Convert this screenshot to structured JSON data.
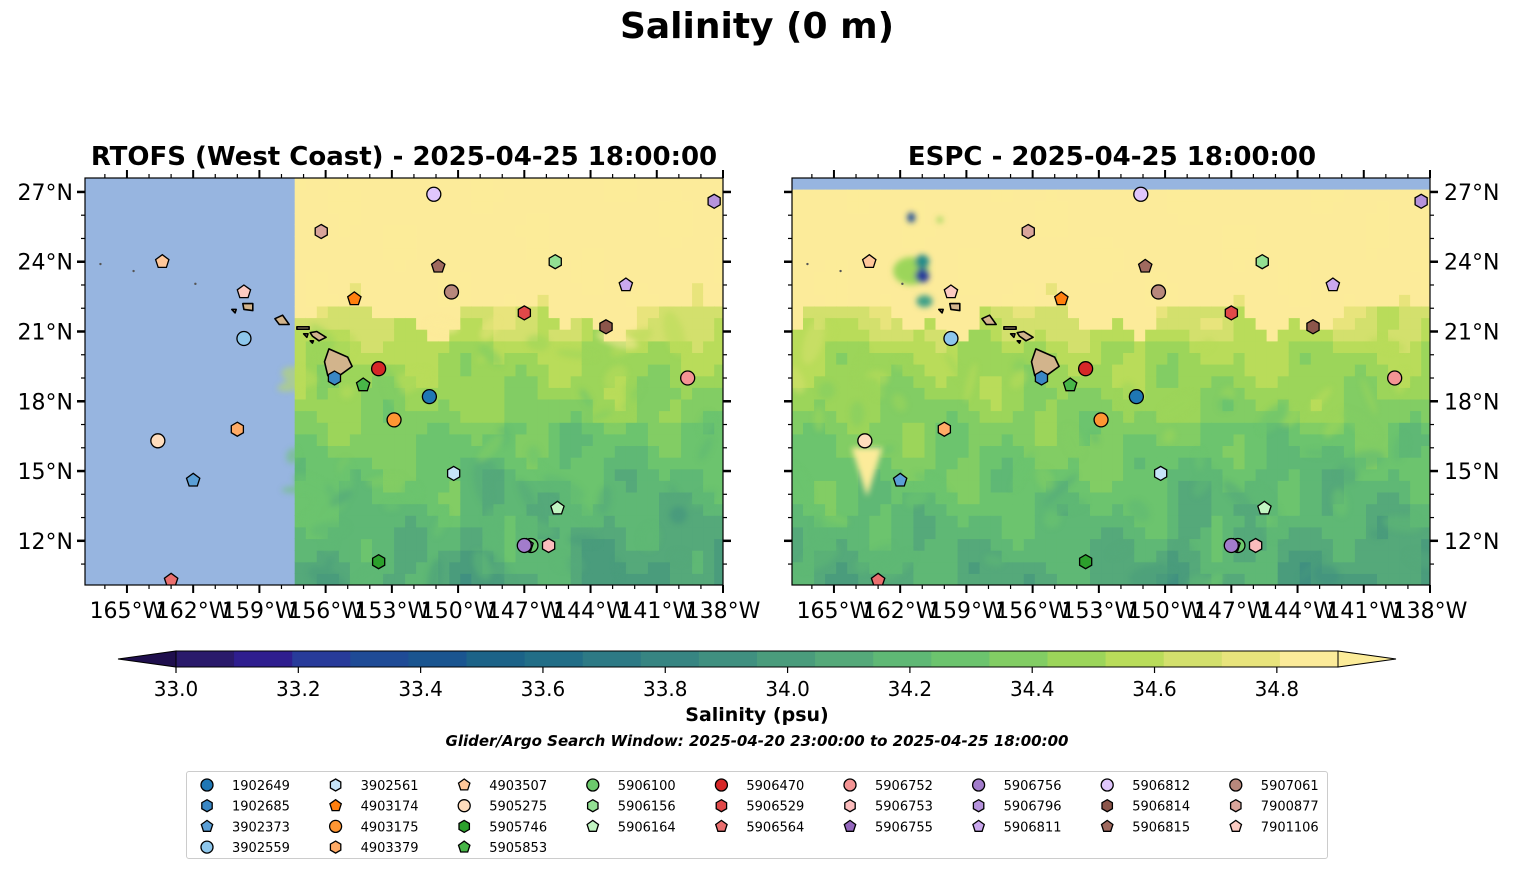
{
  "chart_data": {
    "type": "heatmap",
    "title": "Salinity (0 m)",
    "subplots": [
      {
        "id": "rtofs",
        "title": "RTOFS (West Coast) - 2025-04-25 18:00:00",
        "xlim": [
          -166.9,
          -138.0
        ],
        "ylim": [
          10.1,
          27.6
        ],
        "data_extent_note": "model data only east of ~157.5°W; no-data (blue) to the west",
        "data_lon_min": -157.5
      },
      {
        "id": "espc",
        "title": "ESPC - 2025-04-25 18:00:00",
        "xlim": [
          -166.9,
          -138.0
        ],
        "ylim": [
          10.1,
          27.6
        ],
        "data_lat_max": 27.1
      }
    ],
    "x_ticks": [
      -165,
      -162,
      -159,
      -156,
      -153,
      -150,
      -147,
      -144,
      -141,
      -138
    ],
    "x_tick_labels": [
      "165°W",
      "162°W",
      "159°W",
      "156°W",
      "153°W",
      "150°W",
      "147°W",
      "144°W",
      "141°W",
      "138°W"
    ],
    "y_ticks": [
      12,
      15,
      18,
      21,
      24,
      27
    ],
    "y_tick_labels": [
      "12°N",
      "15°N",
      "18°N",
      "21°N",
      "24°N",
      "27°N"
    ],
    "colorbar": {
      "label": "Salinity (psu)",
      "min": 33.0,
      "max": 34.9,
      "step": 0.1,
      "extend": "both",
      "ticks": [
        33.0,
        33.2,
        33.4,
        33.6,
        33.8,
        34.0,
        34.2,
        34.4,
        34.6,
        34.8
      ],
      "tick_labels": [
        "33.0",
        "33.2",
        "33.4",
        "33.6",
        "33.8",
        "34.0",
        "34.2",
        "34.4",
        "34.6",
        "34.8"
      ],
      "colors": [
        "#2a1a6b",
        "#2f1e8f",
        "#283b9a",
        "#1f4b96",
        "#1a5590",
        "#1c6388",
        "#226e87",
        "#2d7a85",
        "#378582",
        "#409080",
        "#4a9c7c",
        "#55a97a",
        "#5fb875",
        "#6cc46e",
        "#82cd64",
        "#9cd55a",
        "#b9dc5a",
        "#d3e06d",
        "#e8e47c",
        "#fceb9a"
      ],
      "under_color": "#1f0f4d",
      "over_color": "#fcec99"
    },
    "subtitle": "Glider/Argo Search Window: 2025-04-20 23:00:00 to 2025-04-25 18:00:00",
    "nodata_color": "#97b5e0",
    "land_color": "#d2b48c",
    "floats": [
      {
        "id": "1902649",
        "marker": "circle",
        "color": "#1f77b4",
        "lon": -151.3,
        "lat": 18.2
      },
      {
        "id": "1902685",
        "marker": "hexagon",
        "color": "#3a87c4",
        "lon": -155.6,
        "lat": 19.0
      },
      {
        "id": "3902373",
        "marker": "pentagon",
        "color": "#5b9fd6",
        "lon": -162.0,
        "lat": 14.6
      },
      {
        "id": "3902559",
        "marker": "circle",
        "color": "#8ec7ec",
        "lon": -159.7,
        "lat": 20.7
      },
      {
        "id": "3902561",
        "marker": "hexagon",
        "color": "#c6e4f8",
        "lon": -150.2,
        "lat": 14.9
      },
      {
        "id": "4903174",
        "marker": "pentagon",
        "color": "#ff7f0e",
        "lon": -154.7,
        "lat": 22.4
      },
      {
        "id": "4903175",
        "marker": "circle",
        "color": "#ff9633",
        "lon": -152.9,
        "lat": 17.2
      },
      {
        "id": "4903379",
        "marker": "hexagon",
        "color": "#ffab66",
        "lon": -160.0,
        "lat": 16.8
      },
      {
        "id": "4903507",
        "marker": "pentagon",
        "color": "#ffc799",
        "lon": -163.4,
        "lat": 24.0
      },
      {
        "id": "5905275",
        "marker": "circle",
        "color": "#ffddbd",
        "lon": -163.6,
        "lat": 16.3
      },
      {
        "id": "5905746",
        "marker": "hexagon",
        "color": "#2ca02c",
        "lon": -153.6,
        "lat": 11.1
      },
      {
        "id": "5905853",
        "marker": "pentagon",
        "color": "#48b648",
        "lon": -154.3,
        "lat": 18.7
      },
      {
        "id": "5906100",
        "marker": "circle",
        "color": "#6cc96c",
        "lon": -146.7,
        "lat": 11.8
      },
      {
        "id": "5906156",
        "marker": "hexagon",
        "color": "#93e093",
        "lon": -145.6,
        "lat": 24.0
      },
      {
        "id": "5906164",
        "marker": "pentagon",
        "color": "#c2f5c2",
        "lon": -145.5,
        "lat": 13.4
      },
      {
        "id": "5906470",
        "marker": "circle",
        "color": "#d62728",
        "lon": -153.6,
        "lat": 19.4
      },
      {
        "id": "5906529",
        "marker": "hexagon",
        "color": "#e04949",
        "lon": -147.0,
        "lat": 21.8
      },
      {
        "id": "5906564",
        "marker": "pentagon",
        "color": "#ea6f6f",
        "lon": -163.0,
        "lat": 10.3
      },
      {
        "id": "5906752",
        "marker": "circle",
        "color": "#f49494",
        "lon": -139.6,
        "lat": 19.0
      },
      {
        "id": "5906753",
        "marker": "hexagon",
        "color": "#fbbcbc",
        "lon": -145.9,
        "lat": 11.8
      },
      {
        "id": "5906755",
        "marker": "pentagon",
        "color": "#9467bd",
        "lon": -146.9,
        "lat": 11.8
      },
      {
        "id": "5906756",
        "marker": "circle",
        "color": "#a27ccb",
        "lon": -147.0,
        "lat": 11.8
      },
      {
        "id": "5906796",
        "marker": "hexagon",
        "color": "#b693dc",
        "lon": -138.4,
        "lat": 26.6
      },
      {
        "id": "5906811",
        "marker": "pentagon",
        "color": "#cba8ee",
        "lon": -142.4,
        "lat": 23.0
      },
      {
        "id": "5906812",
        "marker": "circle",
        "color": "#e0c6fc",
        "lon": -151.1,
        "lat": 26.9
      },
      {
        "id": "5906814",
        "marker": "hexagon",
        "color": "#8c564b",
        "lon": -143.3,
        "lat": 21.2
      },
      {
        "id": "5906815",
        "marker": "pentagon",
        "color": "#a06a5f",
        "lon": -150.9,
        "lat": 23.8
      },
      {
        "id": "5907061",
        "marker": "circle",
        "color": "#b8887c",
        "lon": -150.3,
        "lat": 22.7
      },
      {
        "id": "7900877",
        "marker": "hexagon",
        "color": "#d9a59b",
        "lon": -156.2,
        "lat": 25.3
      },
      {
        "id": "7901106",
        "marker": "pentagon",
        "color": "#fccbc2",
        "lon": -159.7,
        "lat": 22.7
      }
    ]
  },
  "legend": {
    "columns": [
      [
        "1902649",
        "1902685",
        "3902373",
        "3902559"
      ],
      [
        "3902561",
        "4903174",
        "4903175",
        "4903379"
      ],
      [
        "4903507",
        "5905275",
        "5905746",
        "5905853"
      ],
      [
        "5906100",
        "5906156",
        "5906164"
      ],
      [
        "5906470",
        "5906529",
        "5906564"
      ],
      [
        "5906752",
        "5906753",
        "5906755"
      ],
      [
        "5906756",
        "5906796",
        "5906811"
      ],
      [
        "5906812",
        "5906814",
        "5906815"
      ],
      [
        "5907061",
        "7900877",
        "7901106"
      ]
    ]
  }
}
